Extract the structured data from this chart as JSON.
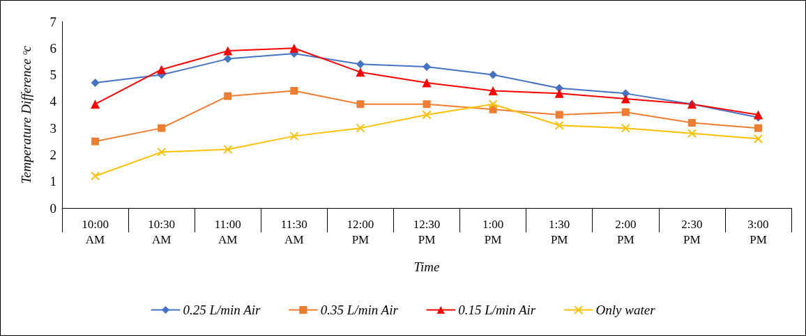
{
  "chart_data": {
    "type": "line",
    "xlabel": "Time",
    "ylabel": "Temperature Difference ᵒc",
    "categories": [
      "10:00 AM",
      "10:30 AM",
      "11:00 AM",
      "11:30 AM",
      "12:00 PM",
      "12:30 PM",
      "1:00 PM",
      "1:30 PM",
      "2:00 PM",
      "2:30 PM",
      "3:00 PM"
    ],
    "series": [
      {
        "name": "0.25 L/min Air",
        "color": "#4472c4",
        "marker": "diamond",
        "values": [
          4.7,
          5.0,
          5.6,
          5.8,
          5.4,
          5.3,
          5.0,
          4.5,
          4.3,
          3.9,
          3.4
        ]
      },
      {
        "name": "0.35 L/min Air",
        "color": "#ed7d31",
        "marker": "square",
        "values": [
          2.5,
          3.0,
          4.2,
          4.4,
          3.9,
          3.9,
          3.7,
          3.5,
          3.6,
          3.2,
          3.0
        ]
      },
      {
        "name": "0.15 L/min Air",
        "color": "#ff0000",
        "marker": "triangle",
        "values": [
          3.9,
          5.2,
          5.9,
          6.0,
          5.1,
          4.7,
          4.4,
          4.3,
          4.1,
          3.9,
          3.5
        ]
      },
      {
        "name": "Only water",
        "color": "#ffc000",
        "marker": "cross",
        "values": [
          1.2,
          2.1,
          2.2,
          2.7,
          3.0,
          3.5,
          3.9,
          3.1,
          3.0,
          2.8,
          2.6
        ]
      }
    ],
    "ylim": [
      0,
      7
    ],
    "yticks": [
      0,
      1,
      2,
      3,
      4,
      5,
      6,
      7
    ],
    "grid": false,
    "legend": "bottom"
  }
}
